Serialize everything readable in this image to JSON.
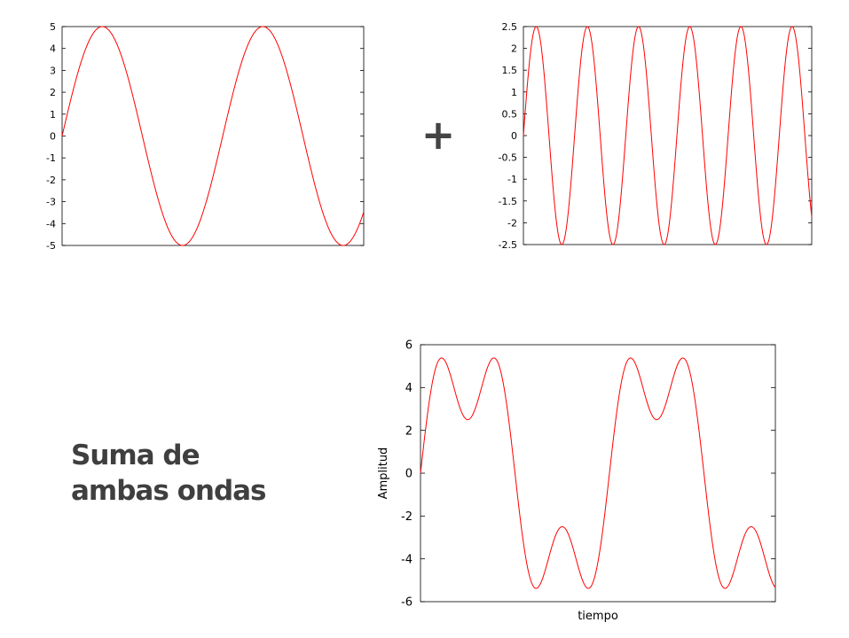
{
  "plus": "+",
  "caption": {
    "line1": "Suma de",
    "line2": "ambas ondas"
  },
  "colors": {
    "curve": "#ff0000",
    "axes": "#000000",
    "caption": "#3f3f3f",
    "plus": "#444444"
  },
  "chart_data": [
    {
      "type": "line",
      "title": "",
      "xlabel": "",
      "ylabel": "",
      "xlim": [
        0,
        11.8
      ],
      "ylim": [
        -5,
        5
      ],
      "yticks": [
        "5",
        "4",
        "3",
        "2",
        "1",
        "0",
        "-1",
        "-2",
        "-3",
        "-4",
        "-5"
      ],
      "series": [
        {
          "function": "5*sin(x)",
          "amplitude": 5,
          "frequency": 1
        }
      ],
      "grid": false
    },
    {
      "type": "line",
      "title": "",
      "xlabel": "",
      "ylabel": "",
      "xlim": [
        0,
        11.8
      ],
      "ylim": [
        -2.5,
        2.5
      ],
      "yticks": [
        "2.5",
        "2",
        "1.5",
        "1",
        "0.5",
        "0",
        "-0.5",
        "-1",
        "-1.5",
        "-2",
        "-2.5"
      ],
      "series": [
        {
          "function": "2.5*sin(3x)",
          "amplitude": 2.5,
          "frequency": 3
        }
      ],
      "grid": false
    },
    {
      "type": "line",
      "title": "",
      "xlabel": "tiempo",
      "ylabel": "Amplitud",
      "xlim": [
        0,
        11.8
      ],
      "ylim": [
        -6,
        6
      ],
      "yticks": [
        "6",
        "4",
        "2",
        "0",
        "-2",
        "-4",
        "-6"
      ],
      "series": [
        {
          "function": "5*sin(x) + 2.5*sin(3x)"
        }
      ],
      "grid": false
    }
  ]
}
